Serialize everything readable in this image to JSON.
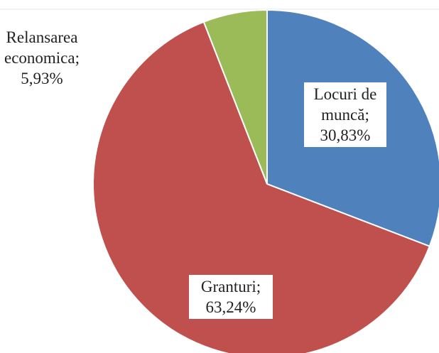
{
  "chart_data": {
    "type": "pie",
    "categories": [
      "Locuri de muncă;",
      "Granturi;",
      "Relansarea economica;"
    ],
    "values": [
      30.83,
      63.24,
      5.93
    ],
    "value_labels": [
      "30,83%",
      "63,24%",
      "5,93%"
    ],
    "colors": [
      "#4f81bd",
      "#c0504d",
      "#9bbb59"
    ]
  }
}
